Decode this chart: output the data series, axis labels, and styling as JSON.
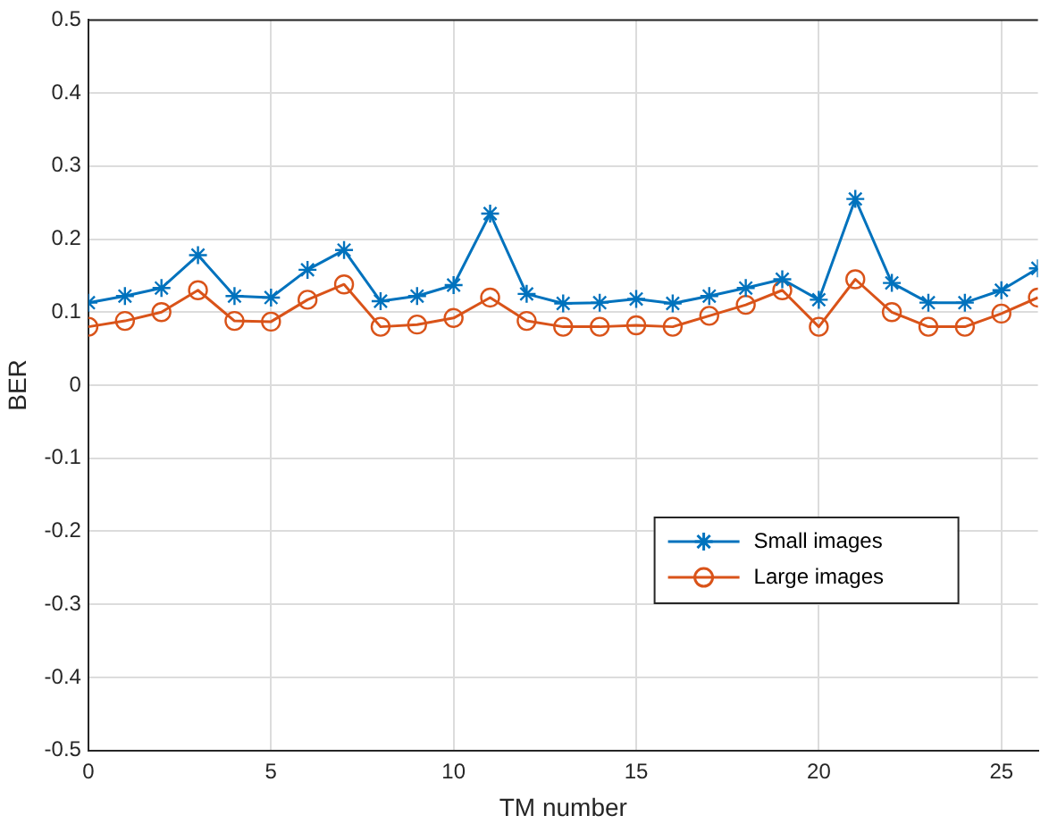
{
  "chart_data": {
    "type": "line",
    "xlabel": "TM number",
    "ylabel": "BER",
    "x": [
      0,
      1,
      2,
      3,
      4,
      5,
      6,
      7,
      8,
      9,
      10,
      11,
      12,
      13,
      14,
      15,
      16,
      17,
      18,
      19,
      20,
      21,
      22,
      23,
      24,
      25,
      26
    ],
    "series": [
      {
        "name": "Small images",
        "color": "#0072bd",
        "marker": "cross",
        "values": [
          0.113,
          0.122,
          0.133,
          0.178,
          0.122,
          0.12,
          0.158,
          0.185,
          0.115,
          0.122,
          0.137,
          0.235,
          0.125,
          0.112,
          0.113,
          0.118,
          0.112,
          0.122,
          0.133,
          0.145,
          0.117,
          0.255,
          0.14,
          0.113,
          0.113,
          0.13,
          0.16
        ]
      },
      {
        "name": "Large images",
        "color": "#d95319",
        "marker": "circle",
        "values": [
          0.08,
          0.088,
          0.1,
          0.13,
          0.088,
          0.087,
          0.117,
          0.138,
          0.08,
          0.083,
          0.092,
          0.12,
          0.088,
          0.08,
          0.08,
          0.082,
          0.08,
          0.095,
          0.11,
          0.13,
          0.08,
          0.145,
          0.1,
          0.08,
          0.08,
          0.098,
          0.12
        ]
      }
    ],
    "xlim": [
      0,
      26
    ],
    "xticks": [
      0,
      5,
      10,
      15,
      20,
      25
    ],
    "ylim": [
      -0.5,
      0.5
    ],
    "yticks": [
      -0.5,
      -0.4,
      -0.3,
      -0.2,
      -0.1,
      0,
      0.1,
      0.2,
      0.3,
      0.4,
      0.5
    ],
    "grid": true,
    "legend": "right",
    "line_style": "solid"
  }
}
